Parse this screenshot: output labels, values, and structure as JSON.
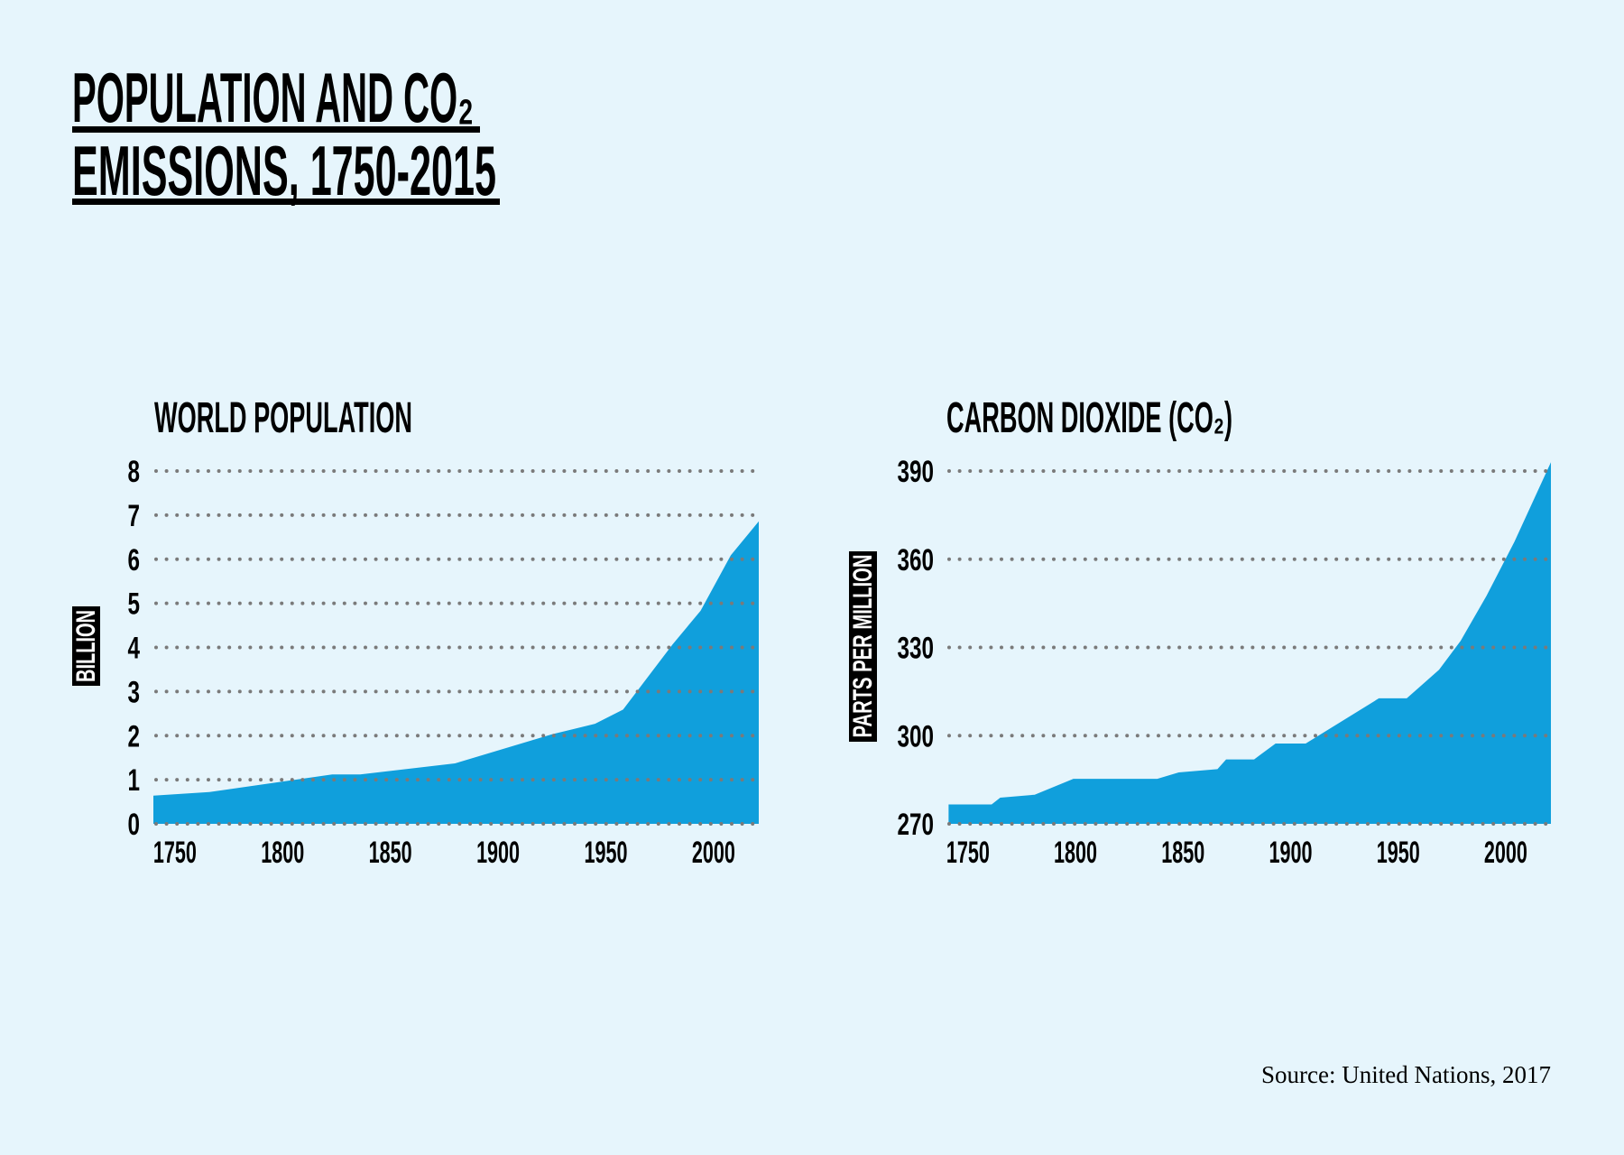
{
  "title": {
    "lines": [
      "POPULATION AND CO₂",
      "EMISSIONS, 1750-2015"
    ]
  },
  "source": "Source: United Nations, 2017",
  "colors": {
    "background": "#e6f5fc",
    "area": "#109fdc",
    "grid": "#7a7a7a",
    "text": "#000000"
  },
  "chart_data": [
    {
      "type": "area",
      "title": "WORLD POPULATION",
      "ylabel": "BILLION",
      "xlabel": "",
      "xlim": [
        1740,
        2021
      ],
      "ylim": [
        0,
        8
      ],
      "xticks": [
        1750,
        1800,
        1850,
        1900,
        1950,
        2000
      ],
      "yticks": [
        0,
        1,
        2,
        3,
        4,
        5,
        6,
        7,
        8
      ],
      "grid": true,
      "x": [
        1740,
        1766,
        1823,
        1836,
        1880,
        1925,
        1945,
        1958,
        1981,
        1994,
        2008,
        2021
      ],
      "y": [
        0.64,
        0.72,
        1.12,
        1.12,
        1.37,
        2.03,
        2.27,
        2.59,
        4.07,
        4.83,
        6.09,
        6.86
      ]
    },
    {
      "type": "area",
      "title": "CARBON DIOXIDE (CO₂)",
      "ylabel": "PARTS PER MILLION",
      "xlabel": "",
      "xlim": [
        1740,
        2021
      ],
      "ylim": [
        270,
        390
      ],
      "xticks": [
        1750,
        1800,
        1850,
        1900,
        1950,
        2000
      ],
      "yticks": [
        270,
        300,
        330,
        360,
        390
      ],
      "grid": true,
      "x": [
        1741,
        1761,
        1765,
        1781,
        1799,
        1838,
        1848,
        1866,
        1870,
        1883,
        1893,
        1907,
        1941,
        1954,
        1969,
        1979,
        1991,
        2004,
        2021
      ],
      "y": [
        276.6,
        276.6,
        278.9,
        279.9,
        285.3,
        285.3,
        287.5,
        288.6,
        291.9,
        291.9,
        297.3,
        297.3,
        312.7,
        312.7,
        322.4,
        332.2,
        347.5,
        365.9,
        393
      ]
    }
  ]
}
